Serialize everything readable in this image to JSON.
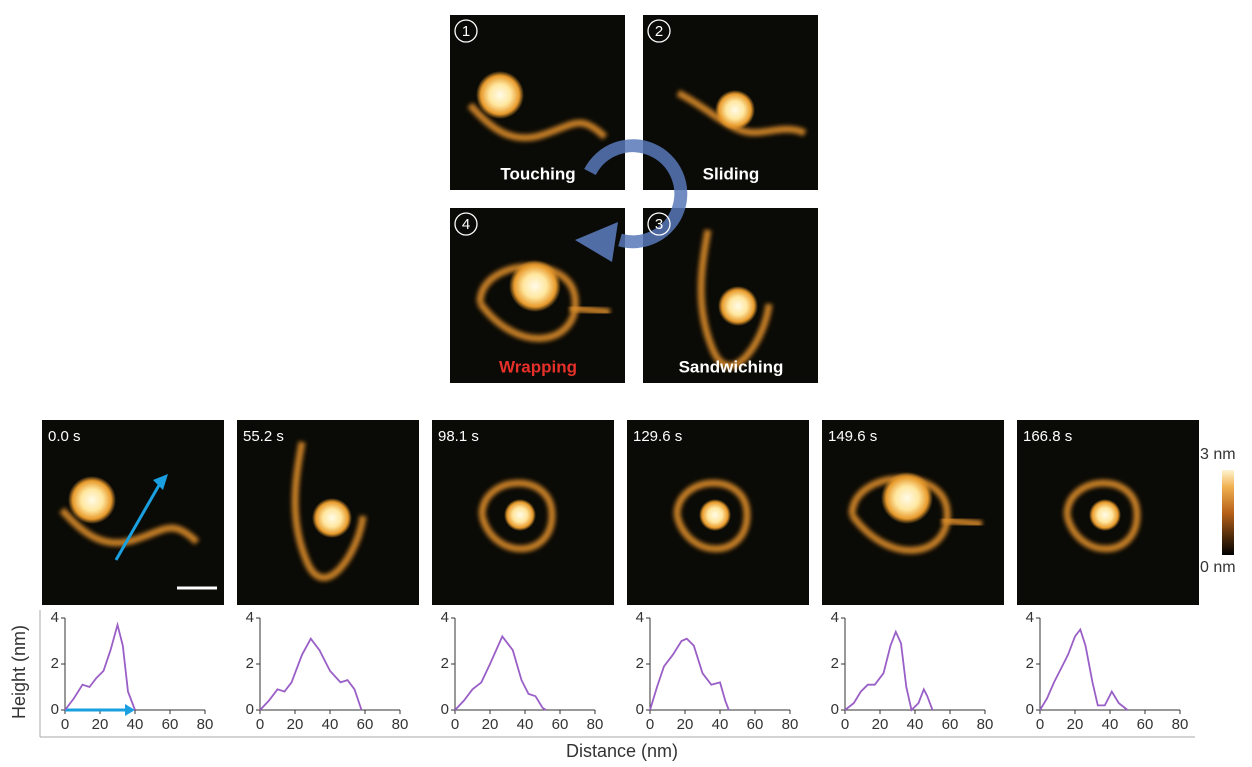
{
  "panels": [
    {
      "number": "1",
      "label": "Touching"
    },
    {
      "number": "2",
      "label": "Sliding"
    },
    {
      "number": "3",
      "label": "Sandwiching"
    },
    {
      "number": "4",
      "label": "Wrapping"
    }
  ],
  "frames": [
    {
      "time": "0.0 s"
    },
    {
      "time": "55.2 s"
    },
    {
      "time": "98.1 s"
    },
    {
      "time": "129.6 s"
    },
    {
      "time": "149.6 s"
    },
    {
      "time": "166.8 s"
    }
  ],
  "colorbar": {
    "max": "3 nm",
    "min": "0 nm"
  },
  "axes": {
    "ylabel": "Height (nm)",
    "xlabel": "Distance (nm)"
  },
  "chart_data": [
    {
      "type": "line",
      "x": [
        0,
        5,
        10,
        14,
        18,
        22,
        26,
        30,
        33,
        36,
        40
      ],
      "series": [
        {
          "color": "#9a5fc7",
          "values": [
            0,
            0.5,
            1.1,
            1.0,
            1.4,
            1.7,
            2.6,
            3.7,
            2.8,
            0.8,
            0
          ]
        }
      ],
      "xlim": [
        0,
        80
      ],
      "ylim": [
        0,
        4
      ],
      "xticks": [
        0,
        20,
        40,
        60,
        80
      ],
      "yticks": [
        0,
        2,
        4
      ]
    },
    {
      "type": "line",
      "x": [
        0,
        5,
        10,
        14,
        18,
        24,
        29,
        34,
        40,
        46,
        50,
        54,
        58
      ],
      "series": [
        {
          "color": "#9a5fc7",
          "values": [
            0,
            0.4,
            0.9,
            0.8,
            1.2,
            2.4,
            3.1,
            2.6,
            1.7,
            1.2,
            1.3,
            0.9,
            0
          ]
        }
      ],
      "xlim": [
        0,
        80
      ],
      "ylim": [
        0,
        4
      ],
      "xticks": [
        0,
        20,
        40,
        60,
        80
      ],
      "yticks": [
        0,
        2,
        4
      ]
    },
    {
      "type": "line",
      "x": [
        0,
        5,
        10,
        15,
        20,
        27,
        33,
        38,
        42,
        46,
        50,
        52
      ],
      "series": [
        {
          "color": "#9a5fc7",
          "values": [
            0,
            0.4,
            0.9,
            1.2,
            2.0,
            3.2,
            2.6,
            1.3,
            0.7,
            0.6,
            0.1,
            0
          ]
        }
      ],
      "xlim": [
        0,
        80
      ],
      "ylim": [
        0,
        4
      ],
      "xticks": [
        0,
        20,
        40,
        60,
        80
      ],
      "yticks": [
        0,
        2,
        4
      ]
    },
    {
      "type": "line",
      "x": [
        0,
        4,
        8,
        13,
        18,
        21,
        25,
        30,
        35,
        40,
        43,
        45
      ],
      "series": [
        {
          "color": "#9a5fc7",
          "values": [
            0,
            1.0,
            1.9,
            2.4,
            3.0,
            3.1,
            2.8,
            1.6,
            1.1,
            1.2,
            0.4,
            0
          ]
        }
      ],
      "xlim": [
        0,
        80
      ],
      "ylim": [
        0,
        4
      ],
      "xticks": [
        0,
        20,
        40,
        60,
        80
      ],
      "yticks": [
        0,
        2,
        4
      ]
    },
    {
      "type": "line",
      "x": [
        0,
        5,
        9,
        13,
        17,
        22,
        26,
        29,
        32,
        35,
        38,
        42,
        45,
        47,
        50
      ],
      "series": [
        {
          "color": "#9a5fc7",
          "values": [
            0,
            0.3,
            0.8,
            1.1,
            1.1,
            1.6,
            2.8,
            3.4,
            2.9,
            1.0,
            0,
            0.3,
            0.9,
            0.6,
            0
          ]
        }
      ],
      "xlim": [
        0,
        80
      ],
      "ylim": [
        0,
        4
      ],
      "xticks": [
        0,
        20,
        40,
        60,
        80
      ],
      "yticks": [
        0,
        2,
        4
      ]
    },
    {
      "type": "line",
      "x": [
        0,
        4,
        8,
        12,
        16,
        20,
        23,
        26,
        30,
        33,
        37,
        41,
        45,
        50
      ],
      "series": [
        {
          "color": "#9a5fc7",
          "values": [
            0,
            0.5,
            1.2,
            1.8,
            2.4,
            3.2,
            3.5,
            2.8,
            1.2,
            0.2,
            0.2,
            0.8,
            0.3,
            0
          ]
        }
      ],
      "xlim": [
        0,
        80
      ],
      "ylim": [
        0,
        4
      ],
      "xticks": [
        0,
        20,
        40,
        60,
        80
      ],
      "yticks": [
        0,
        2,
        4
      ]
    }
  ]
}
